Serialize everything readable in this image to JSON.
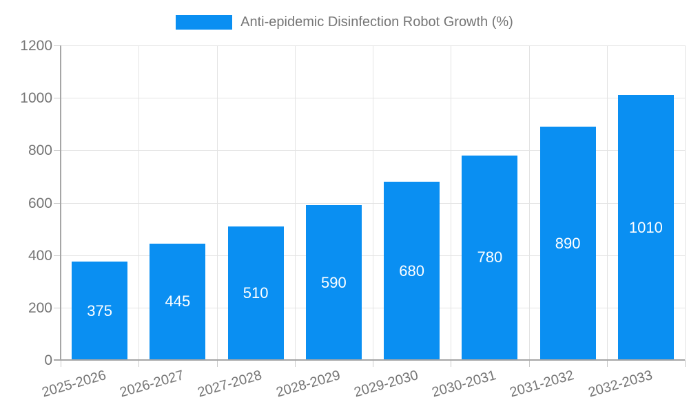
{
  "chart_data": {
    "type": "bar",
    "title": "Anti-epidemic Disinfection Robot Growth (%)",
    "legend": {
      "label": "Anti-epidemic Disinfection Robot Growth (%)",
      "position": "top"
    },
    "categories": [
      "2025-2026",
      "2026-2027",
      "2027-2028",
      "2028-2029",
      "2029-2030",
      "2030-2031",
      "2031-2032",
      "2032-2033"
    ],
    "values": [
      375,
      445,
      510,
      590,
      680,
      780,
      890,
      1010
    ],
    "value_labels": [
      "375",
      "445",
      "510",
      "590",
      "680",
      "780",
      "890",
      "1010"
    ],
    "xlabel": "",
    "ylabel": "",
    "ylim": [
      0,
      1200
    ],
    "yticks": [
      0,
      200,
      400,
      600,
      800,
      1000,
      1200
    ],
    "grid": true,
    "legend_position": "top"
  },
  "colors": {
    "bar": "#0a8ff2",
    "value_label": "#ffffff",
    "axis_text": "#757575",
    "gridline": "#e3e3e3",
    "axis_line": "#a6a6a6",
    "background": "#ffffff"
  }
}
